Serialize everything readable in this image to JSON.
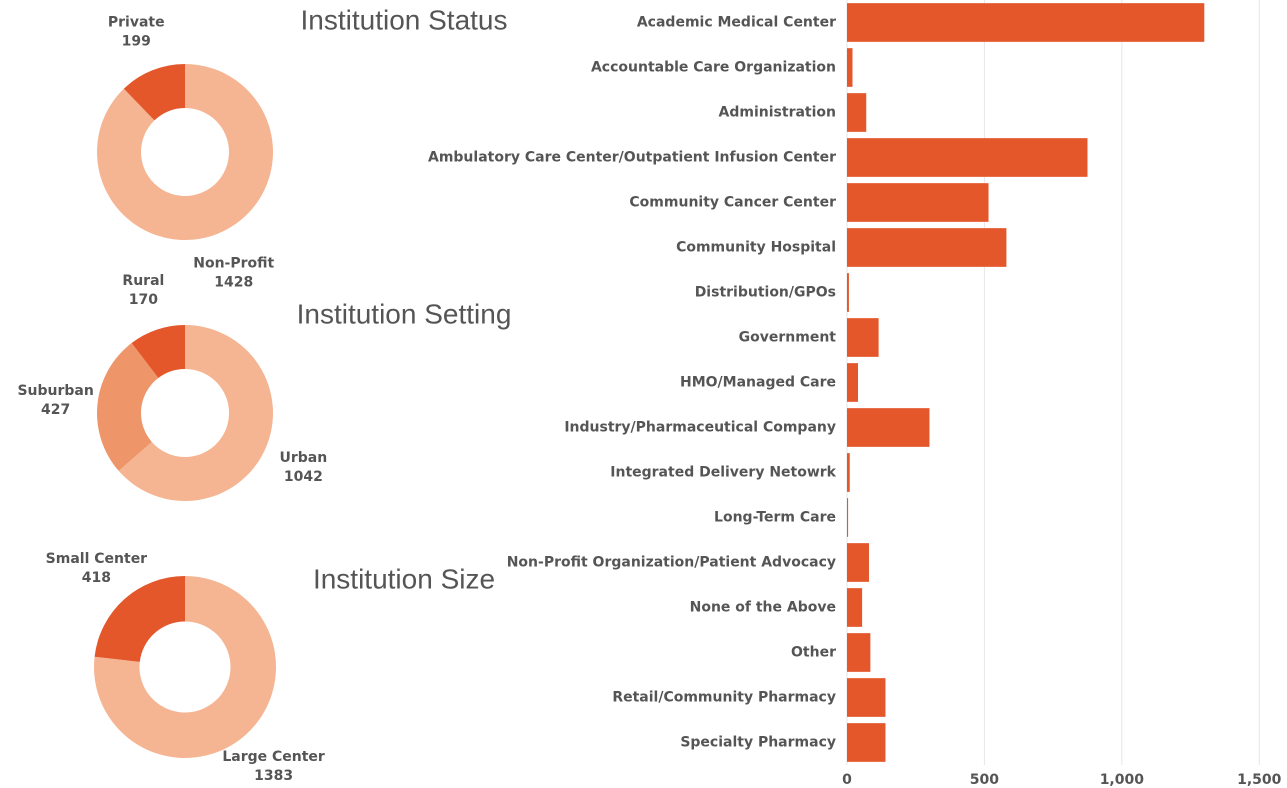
{
  "chart_data": [
    {
      "type": "pie",
      "title": "Institution Status",
      "categories": [
        "Non-Profit",
        "Private"
      ],
      "values": [
        1428,
        199
      ],
      "colors": [
        "#f5b592",
        "#e4572b"
      ]
    },
    {
      "type": "pie",
      "title": "Institution Setting",
      "categories": [
        "Urban",
        "Suburban",
        "Rural"
      ],
      "values": [
        1042,
        427,
        170
      ],
      "colors": [
        "#f5b592",
        "#ee9669",
        "#e4572b"
      ]
    },
    {
      "type": "pie",
      "title": "Institution Size",
      "categories": [
        "Large Center",
        "Small Center"
      ],
      "values": [
        1383,
        418
      ],
      "colors": [
        "#f5b592",
        "#e4572b"
      ]
    },
    {
      "type": "bar",
      "orientation": "horizontal",
      "color": "#e4572b",
      "categories": [
        "Academic Medical Center",
        "Accountable Care Organization",
        "Administration",
        "Ambulatory Care Center/Outpatient Infusion Center",
        "Community Cancer Center",
        "Community Hospital",
        "Distribution/GPOs",
        "Government",
        "HMO/Managed Care",
        "Industry/Pharmaceutical Company",
        "Integrated Delivery Netowrk",
        "Long-Term Care",
        "Non-Profit Organization/Patient Advocacy",
        "None of the Above",
        "Other",
        "Retail/Community Pharmacy",
        "Specialty Pharmacy"
      ],
      "values": [
        1300,
        20,
        70,
        875,
        515,
        580,
        7,
        115,
        40,
        300,
        10,
        4,
        80,
        55,
        85,
        140,
        140
      ],
      "xlim": [
        0,
        1550
      ],
      "xticks": [
        0,
        500,
        {
          "value": 1000,
          "label": "1,000"
        },
        {
          "value": 1500,
          "label": "1,500"
        }
      ],
      "grid": true
    }
  ]
}
